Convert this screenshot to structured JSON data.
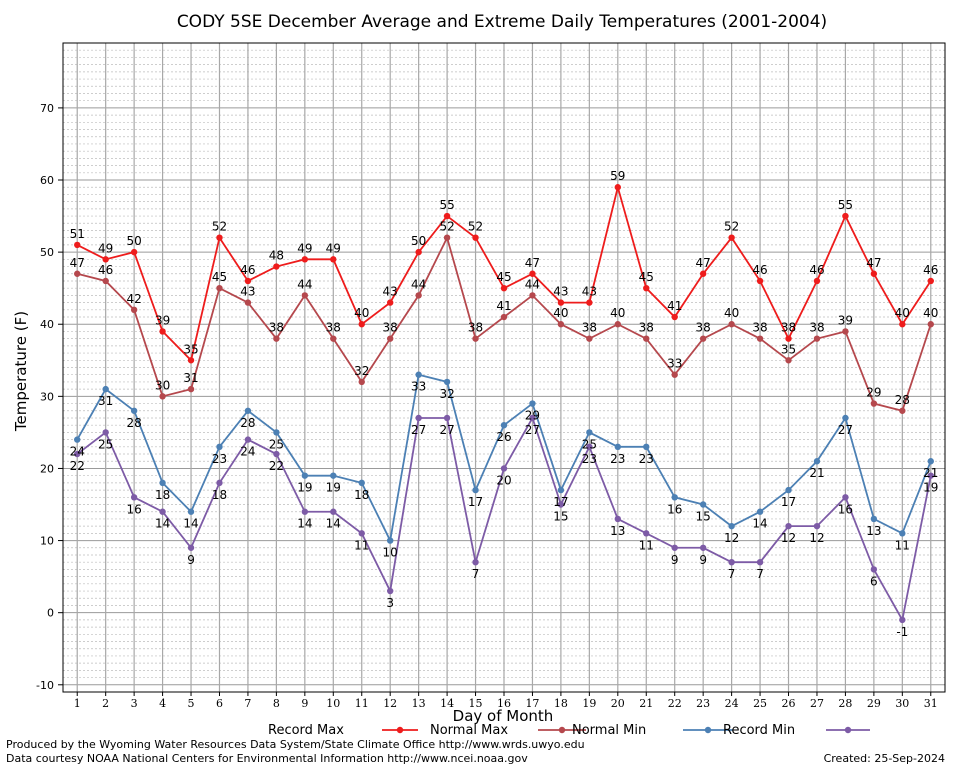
{
  "chart_data": {
    "type": "line",
    "title": "CODY 5SE December Average and Extreme Daily Temperatures (2001-2004)",
    "xlabel": "Day of Month",
    "ylabel": "Temperature (F)",
    "xlim": [
      0.5,
      31.5
    ],
    "ylim": [
      -11,
      79
    ],
    "y_ticks": [
      -10,
      0,
      10,
      20,
      30,
      40,
      50,
      60,
      70
    ],
    "x": [
      1,
      2,
      3,
      4,
      5,
      6,
      7,
      8,
      9,
      10,
      11,
      12,
      13,
      14,
      15,
      16,
      17,
      18,
      19,
      20,
      21,
      22,
      23,
      24,
      25,
      26,
      27,
      28,
      29,
      30,
      31
    ],
    "grid": true,
    "legend_position": "bottom",
    "series": [
      {
        "name": "Record Max",
        "color": "#ee1c1c",
        "values": [
          51,
          49,
          50,
          39,
          35,
          52,
          46,
          48,
          49,
          49,
          40,
          43,
          50,
          55,
          52,
          45,
          47,
          43,
          43,
          59,
          45,
          41,
          47,
          52,
          46,
          38,
          46,
          55,
          47,
          40,
          46
        ],
        "label_pos": "above"
      },
      {
        "name": "Normal Max",
        "color": "#b5484d",
        "values": [
          47,
          46,
          42,
          30,
          31,
          45,
          43,
          38,
          44,
          38,
          32,
          38,
          44,
          52,
          38,
          41,
          44,
          40,
          38,
          40,
          38,
          33,
          38,
          40,
          38,
          35,
          38,
          39,
          29,
          28,
          40
        ],
        "label_pos": "above"
      },
      {
        "name": "Normal Min",
        "color": "#4c80b4",
        "values": [
          24,
          31,
          28,
          18,
          14,
          23,
          28,
          25,
          19,
          19,
          18,
          10,
          33,
          32,
          17,
          26,
          29,
          17,
          25,
          23,
          23,
          16,
          15,
          12,
          14,
          17,
          21,
          27,
          13,
          11,
          21
        ],
        "label_pos": "below"
      },
      {
        "name": "Record Min",
        "color": "#7d5ba6",
        "values": [
          22,
          25,
          16,
          14,
          9,
          18,
          24,
          22,
          14,
          14,
          11,
          3,
          27,
          27,
          7,
          20,
          27,
          15,
          23,
          13,
          11,
          9,
          9,
          7,
          7,
          12,
          12,
          16,
          6,
          -1,
          19
        ],
        "label_pos": "below"
      }
    ]
  },
  "footer": {
    "left_line1": "Produced by the Wyoming Water Resources Data System/State Climate Office http://www.wrds.uwyo.edu",
    "left_line2": "Data courtesy NOAA National Centers for Environmental Information http://www.ncei.noaa.gov",
    "created": "Created:  25-Sep-2024"
  }
}
